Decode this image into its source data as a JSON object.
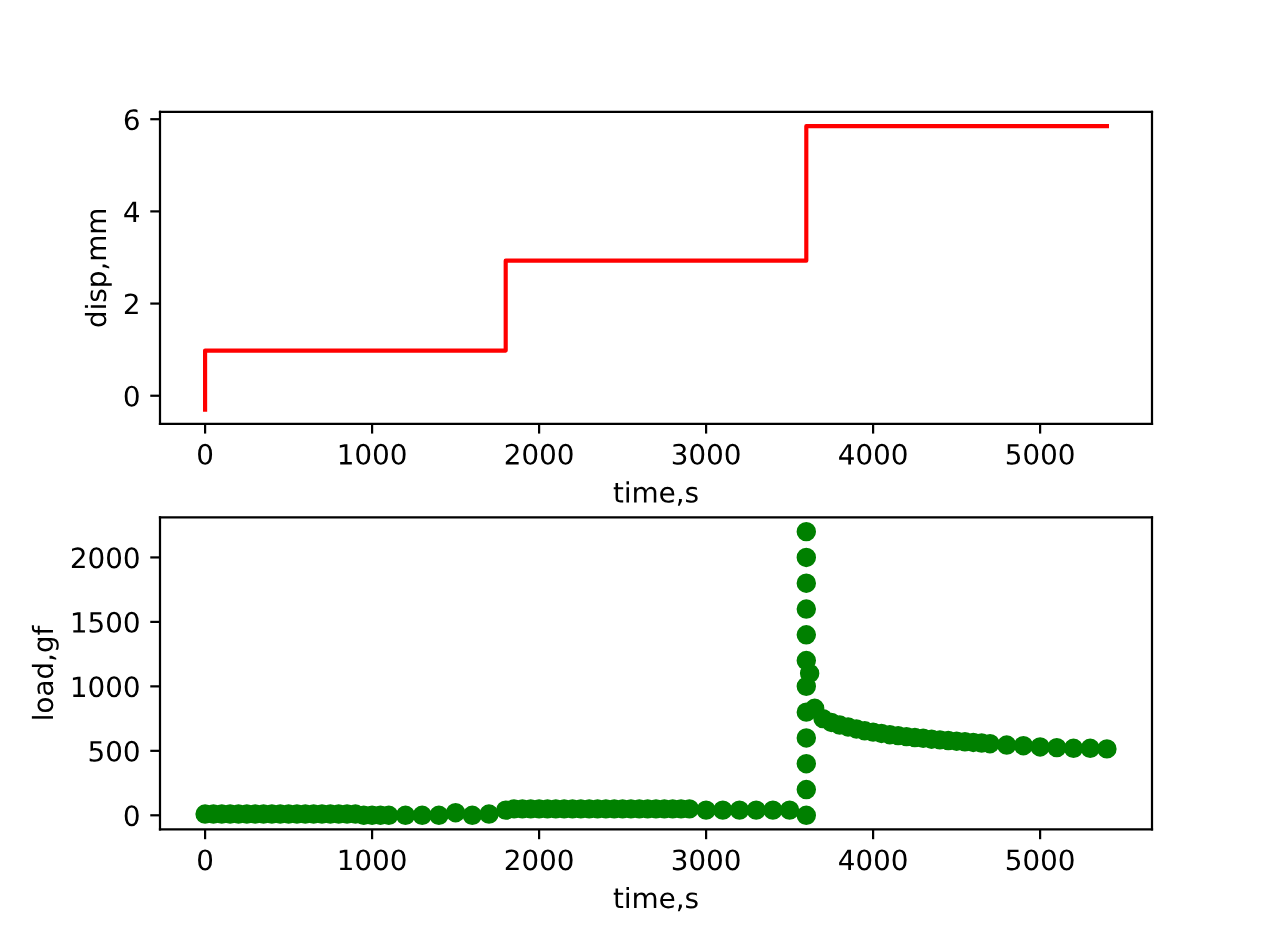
{
  "chart_data": [
    {
      "type": "step",
      "xlabel": "time,s",
      "ylabel": "disp,mm",
      "xlim": [
        -270,
        5670
      ],
      "ylim": [
        -0.61,
        6.16
      ],
      "xticks": [
        0,
        1000,
        2000,
        3000,
        4000,
        5000
      ],
      "yticks": [
        0,
        2,
        4,
        6
      ],
      "grid": false,
      "legend": false,
      "x": [
        0,
        0,
        1800,
        1800,
        3600,
        3600,
        5400
      ],
      "series": [
        {
          "color": "#ff0000",
          "values": [
            -0.3,
            0.98,
            0.98,
            2.93,
            2.93,
            5.85,
            5.85
          ]
        }
      ]
    },
    {
      "type": "scatter",
      "xlabel": "time,s",
      "ylabel": "load,gf",
      "xlim": [
        -270,
        5670
      ],
      "ylim": [
        -110,
        2310
      ],
      "xticks": [
        0,
        1000,
        2000,
        3000,
        4000,
        5000
      ],
      "yticks": [
        0,
        500,
        1000,
        1500,
        2000
      ],
      "grid": false,
      "legend": false,
      "marker": "circle",
      "x": [
        0,
        50,
        100,
        150,
        200,
        250,
        300,
        350,
        400,
        450,
        500,
        550,
        600,
        650,
        700,
        750,
        800,
        850,
        900,
        950,
        1000,
        1050,
        1100,
        1200,
        1300,
        1400,
        1500,
        1600,
        1700,
        1800,
        1850,
        1900,
        1950,
        2000,
        2050,
        2100,
        2150,
        2200,
        2250,
        2300,
        2350,
        2400,
        2450,
        2500,
        2550,
        2600,
        2650,
        2700,
        2750,
        2800,
        2850,
        2900,
        3000,
        3100,
        3200,
        3300,
        3400,
        3500,
        3600,
        3600,
        3600,
        3600,
        3600,
        3600,
        3600,
        3600,
        3600,
        3600,
        3600,
        3600,
        3620,
        3650,
        3700,
        3750,
        3800,
        3850,
        3900,
        3950,
        4000,
        4050,
        4100,
        4150,
        4200,
        4250,
        4300,
        4350,
        4400,
        4450,
        4500,
        4550,
        4600,
        4650,
        4700,
        4800,
        4900,
        5000,
        5100,
        5200,
        5300,
        5400
      ],
      "series": [
        {
          "color": "#008000",
          "values": [
            10,
            10,
            10,
            10,
            10,
            10,
            10,
            10,
            10,
            10,
            10,
            10,
            10,
            10,
            10,
            10,
            10,
            10,
            10,
            0,
            0,
            0,
            0,
            0,
            0,
            0,
            20,
            0,
            10,
            40,
            50,
            50,
            50,
            50,
            50,
            50,
            50,
            50,
            50,
            50,
            50,
            50,
            50,
            50,
            50,
            50,
            50,
            50,
            50,
            50,
            50,
            50,
            40,
            40,
            40,
            40,
            40,
            40,
            0,
            200,
            400,
            600,
            800,
            1000,
            1200,
            1400,
            1600,
            1800,
            2000,
            2200,
            1100,
            830,
            750,
            720,
            700,
            685,
            670,
            655,
            645,
            635,
            625,
            618,
            610,
            603,
            597,
            590,
            585,
            580,
            575,
            570,
            565,
            560,
            555,
            545,
            540,
            530,
            525,
            520,
            520,
            515
          ]
        }
      ]
    }
  ]
}
